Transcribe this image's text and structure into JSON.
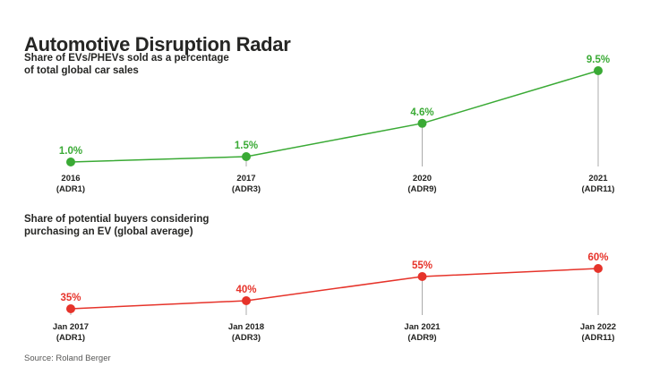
{
  "header": {
    "title": "Automotive Disruption Radar"
  },
  "source": {
    "text": "Source: Roland Berger"
  },
  "colors": {
    "green": "#3aaa35",
    "red": "#e6332a",
    "text_dark": "#222220",
    "drop_line": "#ababab",
    "source_text": "#575756"
  },
  "chart_data": [
    {
      "type": "line",
      "title": "Share of EVs/PHEVs sold as a percentage\nof total global car sales",
      "series_color": "#3aaa35",
      "categories": [
        "2016\n(ADR1)",
        "2017\n(ADR3)",
        "2020\n(ADR9)",
        "2021\n(ADR11)"
      ],
      "values": [
        1.0,
        1.5,
        4.6,
        9.5
      ],
      "point_labels": [
        "1.0%",
        "1.5%",
        "4.6%",
        "9.5%"
      ],
      "ylabel": "",
      "xlabel": "",
      "ylim": [
        0,
        10
      ],
      "unit": "% of total global car sales",
      "legend_position": "none",
      "grid": false
    },
    {
      "type": "line",
      "title": "Share of potential buyers considering\npurchasing an EV (global average)",
      "series_color": "#e6332a",
      "categories": [
        "Jan 2017\n(ADR1)",
        "Jan 2018\n(ADR3)",
        "Jan 2021\n(ADR9)",
        "Jan 2022\n(ADR11)"
      ],
      "values": [
        35,
        40,
        55,
        60
      ],
      "point_labels": [
        "35%",
        "40%",
        "55%",
        "60%"
      ],
      "ylabel": "",
      "xlabel": "",
      "ylim": [
        0,
        65
      ],
      "unit": "% of potential buyers",
      "legend_position": "none",
      "grid": false
    }
  ]
}
